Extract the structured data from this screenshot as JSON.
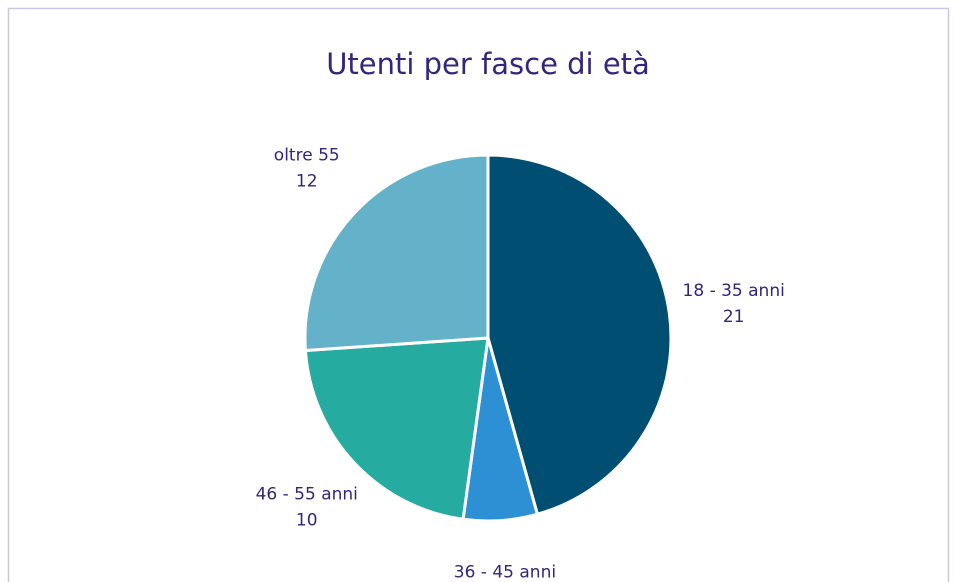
{
  "chart_data": {
    "type": "pie",
    "title": "Utenti per fasce di età",
    "categories": [
      "18 - 35 anni",
      "36 - 45 anni",
      "46 - 55 anni",
      "oltre 55"
    ],
    "values": [
      21,
      3,
      10,
      12
    ],
    "colors": [
      "#004e72",
      "#2d90d5",
      "#26aba1",
      "#63b2ca"
    ]
  }
}
